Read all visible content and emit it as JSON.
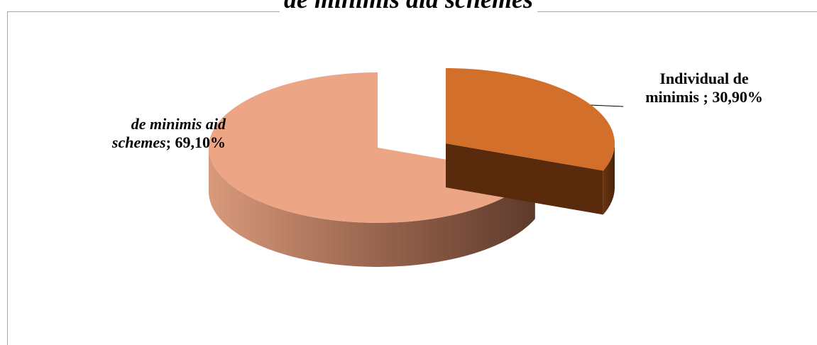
{
  "chart_data": {
    "type": "pie",
    "title": "de minimis aid schemes",
    "slices": [
      {
        "name": "de minimis aid schemes",
        "value": 69.1,
        "value_label": "69,10%",
        "color": "#eca686",
        "side_color": "#7a4a37",
        "exploded": false
      },
      {
        "name": "Individual de minimis",
        "value": 30.9,
        "value_label": "30,90%",
        "color": "#d2702b",
        "side_color": "#5a2a0d",
        "exploded": true
      }
    ],
    "labels": {
      "schemes": {
        "name_line1": "de  minimis aid",
        "name_line2": "schemes",
        "sep": "; ",
        "value": "69,10%"
      },
      "individual": {
        "name_line1": "Individual de",
        "name_line2": "minimis",
        "sep": " ; ",
        "value": "30,90%"
      }
    },
    "legend": "none",
    "style": "3d-exploded"
  }
}
